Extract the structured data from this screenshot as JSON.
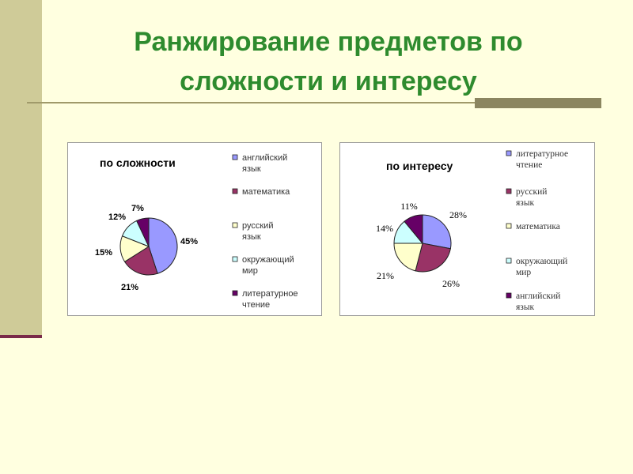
{
  "slide": {
    "title_line1": "Ранжирование предметов по",
    "title_line2": "сложности и интересу"
  },
  "chart_data": [
    {
      "type": "pie",
      "title": "по сложности",
      "slices": [
        {
          "label": "английский язык",
          "value": 45,
          "display": "45%",
          "color": "#9999ff"
        },
        {
          "label": "математика",
          "value": 21,
          "display": "21%",
          "color": "#993366"
        },
        {
          "label": "русский язык",
          "value": 15,
          "display": "15%",
          "color": "#ffffcc"
        },
        {
          "label": "окружающий мир",
          "value": 12,
          "display": "12%",
          "color": "#ccffff"
        },
        {
          "label": "литературное чтение",
          "value": 7,
          "display": "7%",
          "color": "#660066"
        }
      ],
      "legend_position": "right"
    },
    {
      "type": "pie",
      "title": "по интересу",
      "slices": [
        {
          "label": "литературное чтение",
          "value": 28,
          "display": "28%",
          "color": "#9999ff"
        },
        {
          "label": "русский язык",
          "value": 26,
          "display": "26%",
          "color": "#993366"
        },
        {
          "label": "математика",
          "value": 21,
          "display": "21%",
          "color": "#ffffcc"
        },
        {
          "label": "окружающий мир",
          "value": 14,
          "display": "14%",
          "color": "#ccffff"
        },
        {
          "label": "английский язык",
          "value": 11,
          "display": "11%",
          "color": "#660066"
        }
      ],
      "legend_position": "right"
    }
  ]
}
